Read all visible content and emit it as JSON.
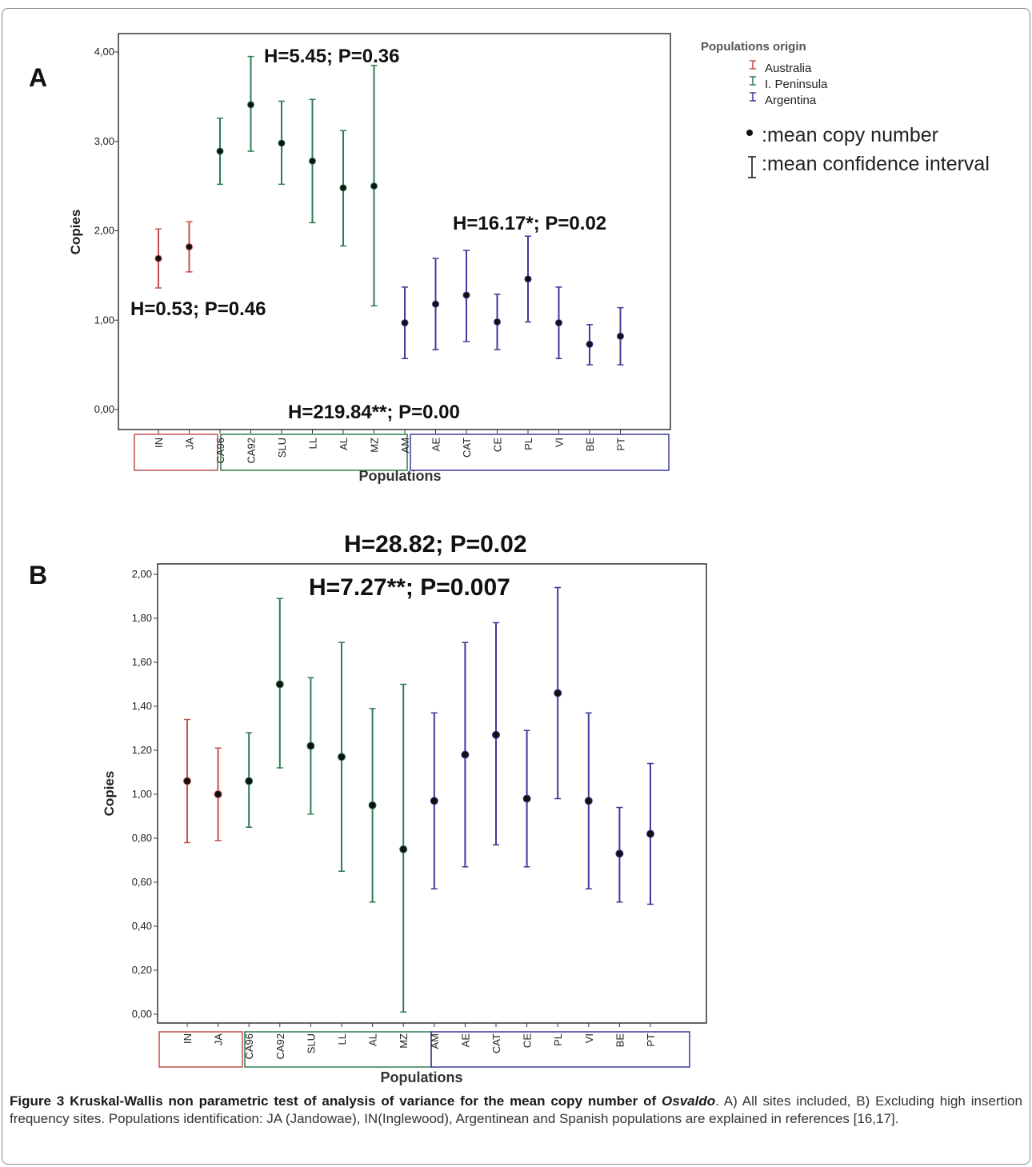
{
  "chart_data": [
    {
      "type": "errorbar",
      "panel_label": "A",
      "xlabel": "Populations",
      "ylabel": "Copies",
      "ylim": [
        0,
        4
      ],
      "y_ticks": [
        "0,00",
        "1,00",
        "2,00",
        "3,00",
        "4,00"
      ],
      "categories": [
        "IN",
        "JA",
        "CA96",
        "CA92",
        "SLU",
        "LL",
        "AL",
        "MZ",
        "AM",
        "AE",
        "CAT",
        "CE",
        "PL",
        "VI",
        "BE",
        "PT"
      ],
      "groups": [
        "Australia",
        "Australia",
        "I. Peninsula",
        "I. Peninsula",
        "I. Peninsula",
        "I. Peninsula",
        "I. Peninsula",
        "I. Peninsula",
        "Argentina",
        "Argentina",
        "Argentina",
        "Argentina",
        "Argentina",
        "Argentina",
        "Argentina",
        "Argentina"
      ],
      "mean": [
        1.69,
        1.82,
        2.89,
        3.41,
        2.98,
        2.78,
        2.48,
        2.5,
        0.97,
        1.18,
        1.28,
        0.98,
        1.46,
        0.97,
        0.73,
        0.82
      ],
      "ci_low": [
        1.36,
        1.54,
        2.52,
        2.89,
        2.52,
        2.09,
        1.83,
        1.16,
        0.57,
        0.67,
        0.76,
        0.67,
        0.98,
        0.57,
        0.5,
        0.5
      ],
      "ci_high": [
        2.02,
        2.1,
        3.26,
        3.95,
        3.45,
        3.47,
        3.12,
        3.85,
        1.37,
        1.69,
        1.78,
        1.29,
        1.94,
        1.37,
        0.95,
        1.14
      ],
      "annotations": [
        "H=5.45; P=0.36",
        "H=16.17*; P=0.02",
        "H=0.53; P=0.46",
        "H=219.84**; P=0.00"
      ]
    },
    {
      "type": "errorbar",
      "panel_label": "B",
      "xlabel": "Populations",
      "ylabel": "Copies",
      "ylim": [
        0,
        2
      ],
      "y_ticks": [
        "0,00",
        "0,20",
        "0,40",
        "0,60",
        "0,80",
        "1,00",
        "1,20",
        "1,40",
        "1,60",
        "1,80",
        "2,00"
      ],
      "categories": [
        "IN",
        "JA",
        "CA96",
        "CA92",
        "SLU",
        "LL",
        "AL",
        "MZ",
        "AM",
        "AE",
        "CAT",
        "CE",
        "PL",
        "VI",
        "BE",
        "PT"
      ],
      "groups": [
        "Australia",
        "Australia",
        "I. Peninsula",
        "I. Peninsula",
        "I. Peninsula",
        "I. Peninsula",
        "I. Peninsula",
        "I. Peninsula",
        "Argentina",
        "Argentina",
        "Argentina",
        "Argentina",
        "Argentina",
        "Argentina",
        "Argentina",
        "Argentina"
      ],
      "mean": [
        1.06,
        1.0,
        1.06,
        1.5,
        1.22,
        1.17,
        0.95,
        0.75,
        0.97,
        1.18,
        1.27,
        0.98,
        1.46,
        0.97,
        0.73,
        0.82
      ],
      "ci_low": [
        0.78,
        0.79,
        0.85,
        1.12,
        0.91,
        0.65,
        0.51,
        0.01,
        0.57,
        0.67,
        0.77,
        0.67,
        0.98,
        0.57,
        0.51,
        0.5
      ],
      "ci_high": [
        1.34,
        1.21,
        1.28,
        1.89,
        1.53,
        1.69,
        1.39,
        1.5,
        1.37,
        1.69,
        1.78,
        1.29,
        1.94,
        1.37,
        0.94,
        1.14
      ],
      "annotations": [
        "H=28.82; P=0.02",
        "H=7.27**; P=0.007"
      ]
    }
  ],
  "legend": {
    "title": "Populations origin",
    "items": [
      {
        "label": "Australia",
        "color": "#c0504d"
      },
      {
        "label": "I. Peninsula",
        "color": "#2e7d4f"
      },
      {
        "label": "Argentina",
        "color": "#3b3b9a"
      }
    ],
    "mean_marker_label": ":mean copy number",
    "ci_label": ":mean confidence interval"
  },
  "group_colors": {
    "Australia": "#c0504d",
    "I. Peninsula": "#2e7d4f",
    "Argentina": "#3b3b9a"
  },
  "caption": {
    "figure_label": "Figure 3",
    "title_bold": "Kruskal-Wallis non parametric test of analysis of variance for the mean copy number of",
    "title_italic": "Osvaldo",
    "title_end": ".",
    "body": "A) All sites included, B) Excluding high insertion frequency sites. Populations identification: JA (Jandowae), IN(Inglewood), Argentinean and Spanish populations are explained in references [16,17]."
  }
}
